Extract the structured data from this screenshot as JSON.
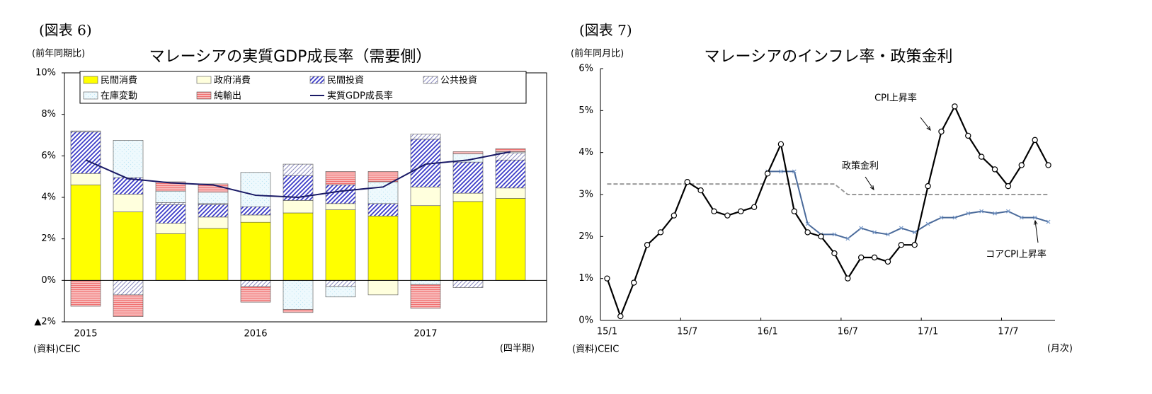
{
  "chart_data": [
    {
      "type": "stacked_bar",
      "figure_label": "(図表 6)",
      "unit_note": "(前年同期比)",
      "title": "マレーシアの実質GDP成長率（需要側）",
      "source": "(資料)CEIC",
      "x_unit_label": "(四半期)",
      "categories": [
        "2015",
        null,
        null,
        null,
        "2016",
        null,
        null,
        null,
        "2017",
        null,
        null
      ],
      "ylim": [
        -2,
        10
      ],
      "yticks": [
        {
          "value": -2,
          "label": "▲2%"
        },
        {
          "value": 0,
          "label": "0%"
        },
        {
          "value": 2,
          "label": "2%"
        },
        {
          "value": 4,
          "label": "4%"
        },
        {
          "value": 6,
          "label": "6%"
        },
        {
          "value": 8,
          "label": "8%"
        },
        {
          "value": 10,
          "label": "10%"
        }
      ],
      "grid": false,
      "series": [
        {
          "name": "民間消費",
          "color": "#ffff00",
          "pattern": "solid",
          "values": [
            4.6,
            3.3,
            2.25,
            2.5,
            2.8,
            3.25,
            3.4,
            3.1,
            3.6,
            3.8,
            3.95
          ]
        },
        {
          "name": "政府消費",
          "color": "#ffffdd",
          "pattern": "solid",
          "values": [
            0.55,
            0.85,
            0.5,
            0.55,
            0.35,
            0.6,
            0.3,
            -0.7,
            0.9,
            0.4,
            0.5
          ]
        },
        {
          "name": "民間投資",
          "color": "#3c3cc8",
          "pattern": "diagonal",
          "values": [
            2.0,
            0.8,
            0.9,
            0.6,
            0.4,
            1.2,
            0.9,
            0.6,
            2.3,
            1.5,
            1.35
          ]
        },
        {
          "name": "公共投資",
          "color": "#8c8cc0",
          "pattern": "diagonal-thin",
          "values": [
            0.05,
            -0.7,
            0.1,
            0.05,
            -0.3,
            0.55,
            -0.3,
            0,
            0.25,
            -0.35,
            0.35
          ]
        },
        {
          "name": "在庫変動",
          "color": "#bfe6f5",
          "pattern": "dots",
          "values": [
            0,
            1.8,
            0.55,
            0.55,
            1.65,
            -1.4,
            -0.5,
            1.05,
            -0.2,
            0.4,
            0.05
          ]
        },
        {
          "name": "純輸出",
          "color": "#f07070",
          "pattern": "horizontal",
          "values": [
            -1.25,
            -1.05,
            0.45,
            0.4,
            -0.75,
            -0.15,
            0.65,
            0.5,
            -1.15,
            0.1,
            0.15
          ]
        }
      ],
      "line_series": {
        "name": "実質GDP成長率",
        "color": "#1a1a66",
        "values": [
          5.8,
          4.9,
          4.7,
          4.6,
          4.1,
          4.0,
          4.3,
          4.5,
          5.6,
          5.8,
          6.2
        ]
      }
    },
    {
      "type": "line",
      "figure_label": "(図表 7)",
      "unit_note": "(前年同月比)",
      "title": "マレーシアのインフレ率・政策金利",
      "source": "(資料)CEIC",
      "x_unit_label": "(月次)",
      "categories": [
        "15/1",
        null,
        null,
        null,
        null,
        null,
        "15/7",
        null,
        null,
        null,
        null,
        null,
        "16/1",
        null,
        null,
        null,
        null,
        null,
        "16/7",
        null,
        null,
        null,
        null,
        null,
        "17/1",
        null,
        null,
        null,
        null,
        null,
        "17/7",
        null,
        null,
        null
      ],
      "ylim": [
        0,
        6
      ],
      "yticks": [
        {
          "value": 0,
          "label": "0%"
        },
        {
          "value": 1,
          "label": "1%"
        },
        {
          "value": 2,
          "label": "2%"
        },
        {
          "value": 3,
          "label": "3%"
        },
        {
          "value": 4,
          "label": "4%"
        },
        {
          "value": 5,
          "label": "5%"
        },
        {
          "value": 6,
          "label": "6%"
        }
      ],
      "grid": false,
      "series": [
        {
          "name": "CPI上昇率",
          "color": "#000000",
          "marker": "circle",
          "dash": false,
          "values": [
            1.0,
            0.1,
            0.9,
            1.8,
            2.1,
            2.5,
            3.3,
            3.1,
            2.6,
            2.5,
            2.6,
            2.7,
            3.5,
            4.2,
            2.6,
            2.1,
            2.0,
            1.6,
            1.0,
            1.5,
            1.5,
            1.4,
            1.8,
            1.8,
            3.2,
            4.5,
            5.1,
            4.4,
            3.9,
            3.6,
            3.2,
            3.7,
            4.3,
            3.7
          ]
        },
        {
          "name": "政策金利",
          "color": "#999999",
          "marker": "none",
          "dash": true,
          "values": [
            3.25,
            3.25,
            3.25,
            3.25,
            3.25,
            3.25,
            3.25,
            3.25,
            3.25,
            3.25,
            3.25,
            3.25,
            3.25,
            3.25,
            3.25,
            3.25,
            3.25,
            3.25,
            3.0,
            3.0,
            3.0,
            3.0,
            3.0,
            3.0,
            3.0,
            3.0,
            3.0,
            3.0,
            3.0,
            3.0,
            3.0,
            3.0,
            3.0,
            3.0
          ]
        },
        {
          "name": "コアCPI上昇率",
          "color": "#4a6a9a",
          "marker": "x",
          "dash": false,
          "values": [
            null,
            null,
            null,
            null,
            null,
            null,
            null,
            null,
            null,
            null,
            null,
            null,
            3.55,
            3.55,
            3.55,
            2.3,
            2.05,
            2.05,
            1.95,
            2.2,
            2.1,
            2.05,
            2.2,
            2.1,
            2.3,
            2.45,
            2.45,
            2.55,
            2.6,
            2.55,
            2.6,
            2.45,
            2.45,
            2.35
          ]
        }
      ]
    }
  ]
}
